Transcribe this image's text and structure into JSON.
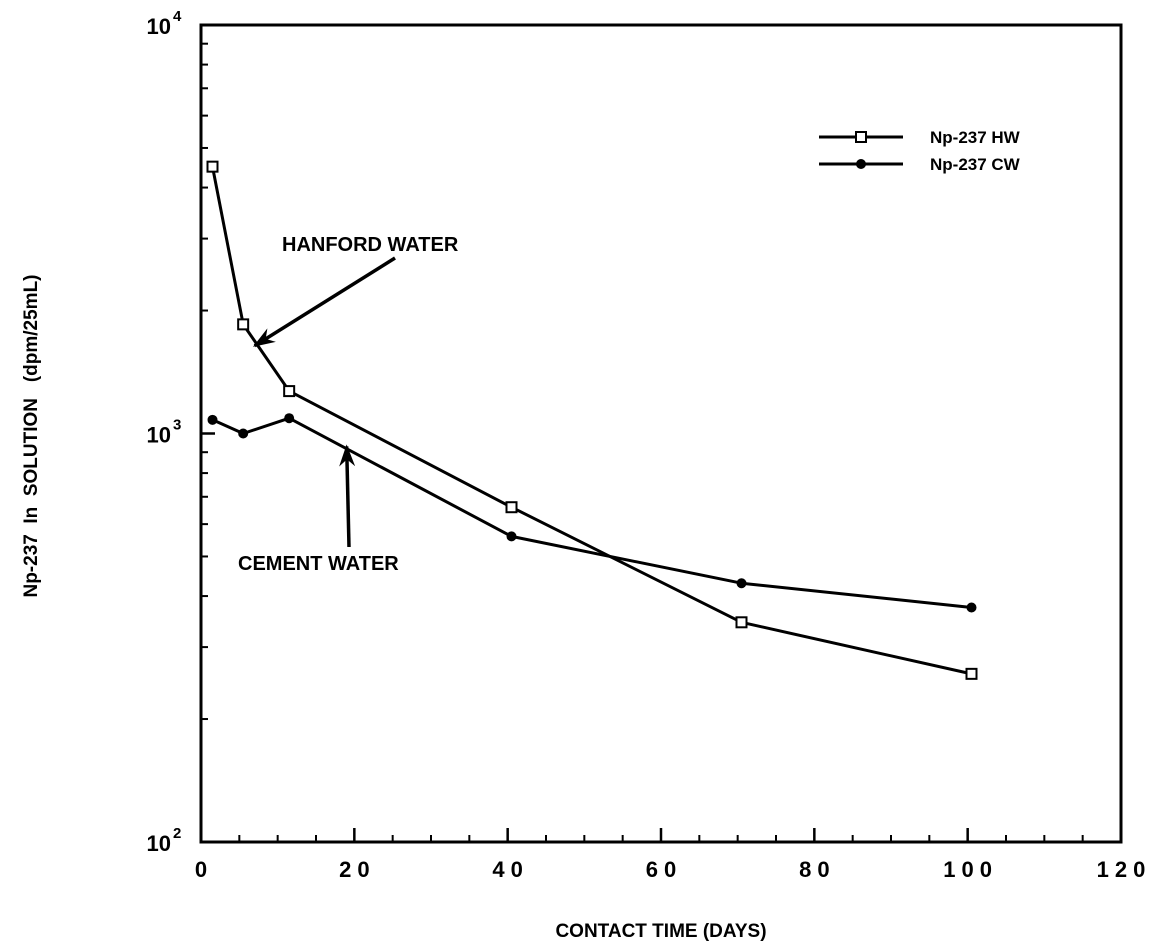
{
  "chart_data": {
    "type": "line",
    "xlabel": "CONTACT TIME (DAYS)",
    "ylabel": "Np-237  In  SOLUTION   (dpm/25mL)",
    "xlim": [
      0,
      120
    ],
    "ylim": [
      100,
      10000
    ],
    "y_scale": "log",
    "x_ticks": [
      0,
      20,
      40,
      60,
      80,
      100,
      120
    ],
    "x_tick_labels": [
      "0",
      "20",
      "40",
      "60",
      "80",
      "100",
      "120"
    ],
    "y_ticks": [
      {
        "value": 100,
        "base": "10",
        "exp": "2"
      },
      {
        "value": 1000,
        "base": "10",
        "exp": "3"
      },
      {
        "value": 10000,
        "base": "10",
        "exp": "4"
      }
    ],
    "grid": false,
    "legend_position": "top-right",
    "series": [
      {
        "name": "Np-237 HW",
        "marker": "open-square",
        "color": "#000000",
        "x": [
          1.5,
          5.5,
          11.5,
          40.5,
          70.5,
          100.5
        ],
        "y": [
          4500,
          1850,
          1270,
          660,
          345,
          258
        ]
      },
      {
        "name": "Np-237 CW",
        "marker": "filled-circle",
        "color": "#000000",
        "x": [
          1.5,
          5.5,
          11.5,
          40.5,
          70.5,
          100.5
        ],
        "y": [
          1080,
          1000,
          1090,
          560,
          430,
          375
        ]
      }
    ],
    "annotations": [
      {
        "text": "HANFORD WATER",
        "arrow_to": {
          "x": 7,
          "y": 1640
        }
      },
      {
        "text": "CEMENT WATER",
        "arrow_to": {
          "x": 19,
          "y": 930
        }
      }
    ]
  }
}
